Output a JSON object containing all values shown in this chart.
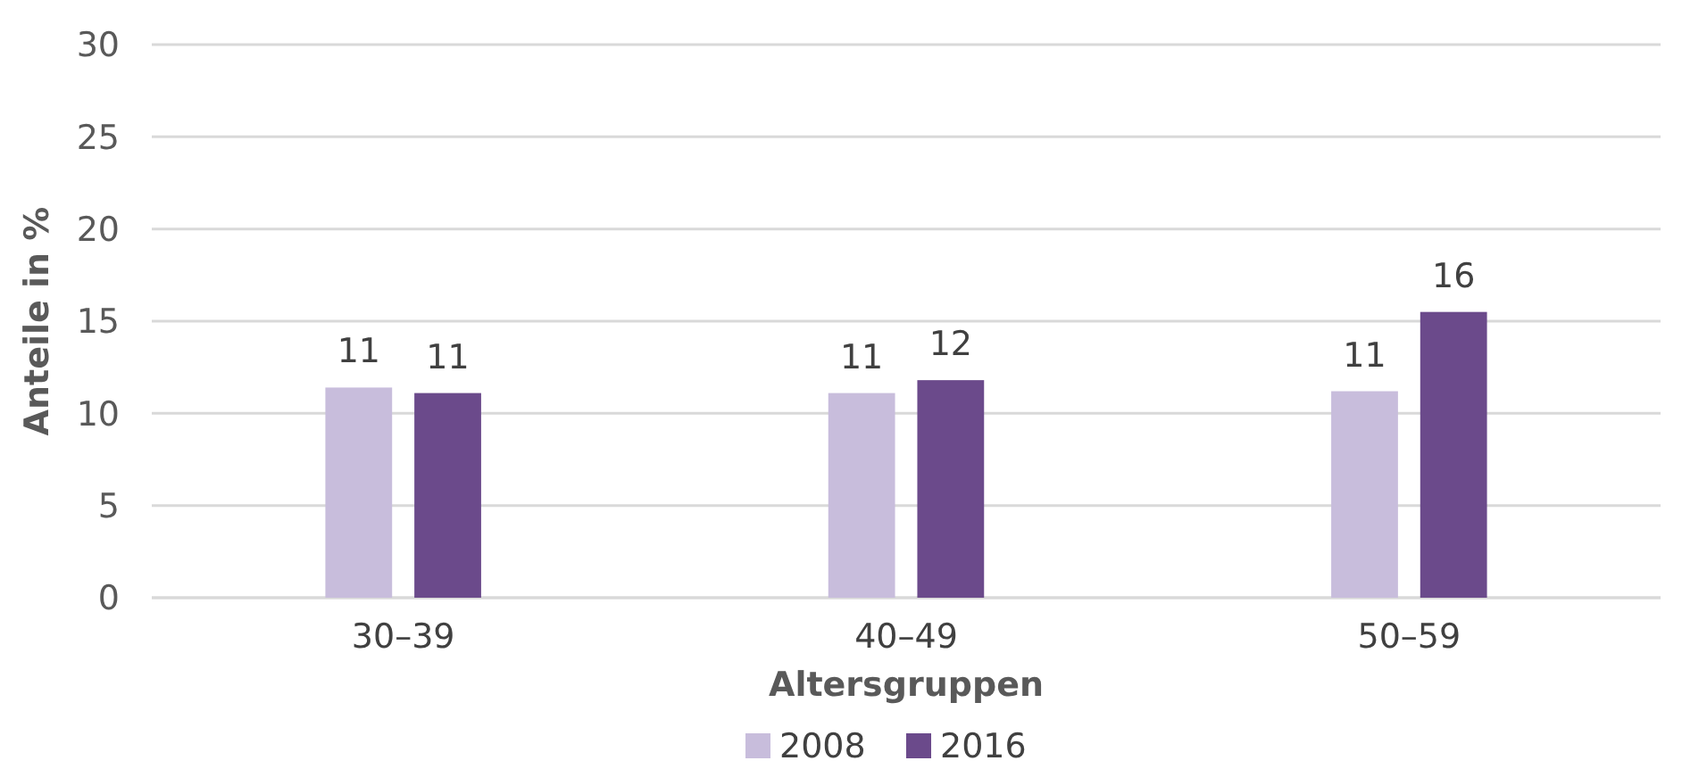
{
  "chart_data": {
    "type": "bar",
    "xlabel": "Altersgruppen",
    "ylabel": "Anteile in %",
    "categories": [
      "30–39",
      "40–49",
      "50–59"
    ],
    "series": [
      {
        "name": "2008",
        "color": "#c8bddc",
        "values": [
          11.4,
          11.1,
          11.2
        ],
        "value_labels": [
          "11",
          "11",
          "11"
        ]
      },
      {
        "name": "2016",
        "color": "#6b4a8b",
        "values": [
          11.1,
          11.8,
          15.5
        ],
        "value_labels": [
          "11",
          "12",
          "16"
        ]
      }
    ],
    "ylim": [
      0,
      30
    ],
    "yticks": [
      0,
      5,
      10,
      15,
      20,
      25,
      30
    ],
    "grid": "y",
    "legend": "bottom"
  }
}
